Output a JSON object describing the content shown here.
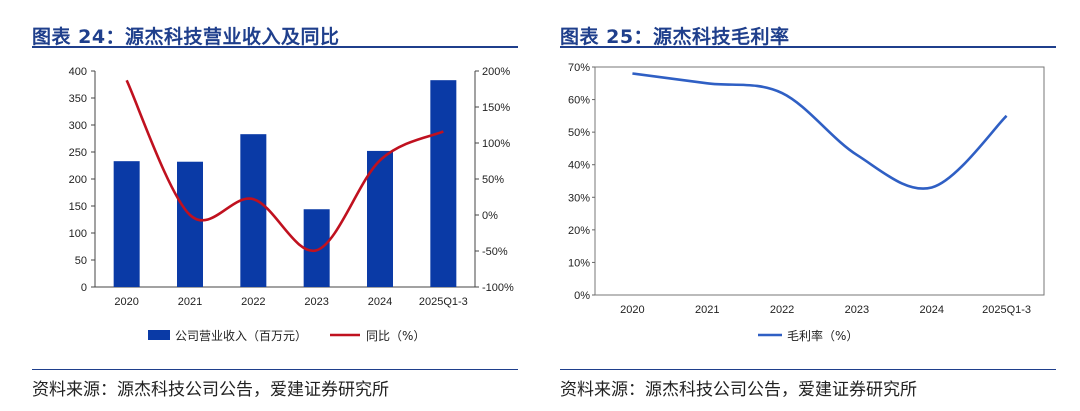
{
  "charts": {
    "left": {
      "title": "图表 24：源杰科技营业收入及同比",
      "source": "资料来源：源杰科技公司公告，爱建证券研究所"
    },
    "right": {
      "title": "图表 25：源杰科技毛利率",
      "source": "资料来源：源杰科技公司公告，爱建证券研究所"
    }
  },
  "colors": {
    "bar": "#0a3aa6",
    "yoy_line": "#c0111f",
    "margin_line": "#2f5fc4",
    "title": "#1f3f8c"
  },
  "chart_data": [
    {
      "type": "bar+line",
      "title": "图表 24：源杰科技营业收入及同比",
      "categories": [
        "2020",
        "2021",
        "2022",
        "2023",
        "2024",
        "2025Q1-3"
      ],
      "series": [
        {
          "name": "公司营业收入（百万元）",
          "type": "bar",
          "axis": "left",
          "values": [
            233,
            232,
            283,
            144,
            252,
            383
          ]
        },
        {
          "name": "同比（%）",
          "type": "line",
          "axis": "right",
          "values": [
            187,
            0,
            22,
            -49,
            76,
            116
          ]
        }
      ],
      "y_left": {
        "ylim": [
          0,
          400
        ],
        "ticks": [
          "0",
          "50",
          "100",
          "150",
          "200",
          "250",
          "300",
          "350",
          "400"
        ]
      },
      "y_right": {
        "ylim": [
          -100,
          200
        ],
        "ticks": [
          "-100%",
          "-50%",
          "0%",
          "50%",
          "100%",
          "150%",
          "200%"
        ]
      },
      "legend": [
        "公司营业收入（百万元）",
        "同比（%）"
      ],
      "legend_position": "bottom"
    },
    {
      "type": "line",
      "title": "图表 25：源杰科技毛利率",
      "categories": [
        "2020",
        "2021",
        "2022",
        "2023",
        "2024",
        "2025Q1-3"
      ],
      "series": [
        {
          "name": "毛利率（%）",
          "values": [
            68,
            65,
            62,
            43,
            33,
            55
          ]
        }
      ],
      "ylim": [
        0,
        70
      ],
      "yticks": [
        "0%",
        "10%",
        "20%",
        "30%",
        "40%",
        "50%",
        "60%",
        "70%"
      ],
      "legend": [
        "毛利率（%）"
      ],
      "legend_position": "bottom"
    }
  ]
}
